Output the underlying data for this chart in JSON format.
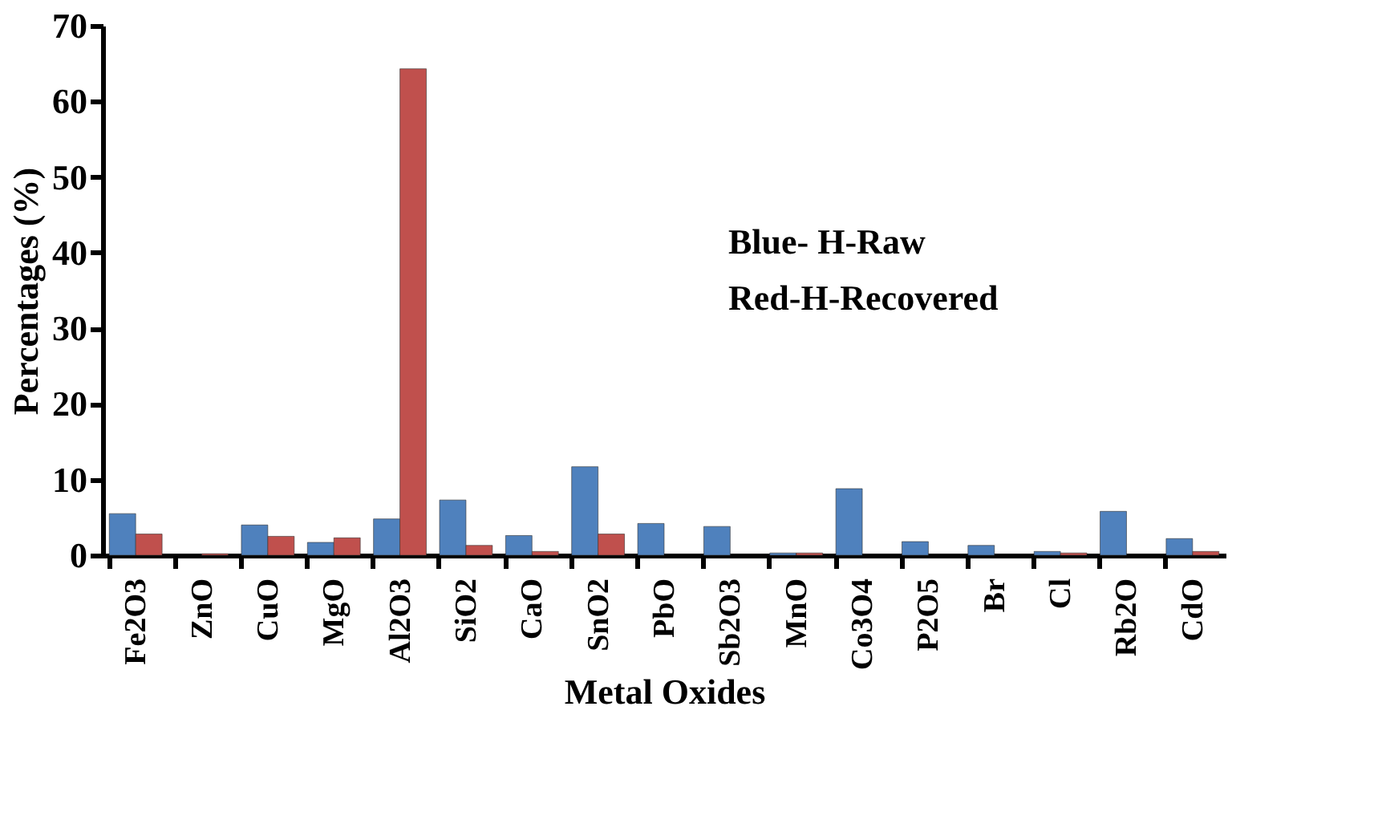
{
  "chart_data": {
    "type": "bar",
    "xlabel": "Metal Oxides",
    "ylabel": "Percentages (%)",
    "categories": [
      "Fe2O3",
      "ZnO",
      "CuO",
      "MgO",
      "Al2O3",
      "SiO2",
      "CaO",
      "SnO2",
      "PbO",
      "Sb2O3",
      "MnO",
      "Co3O4",
      "P2O5",
      "Br",
      "Cl",
      "Rb2O",
      "CdO"
    ],
    "series": [
      {
        "color": "#4f81bd",
        "values": [
          5.5,
          null,
          4,
          1.7,
          4.8,
          7.3,
          2.6,
          11.7,
          4.2,
          3.8,
          0.3,
          8.8,
          1.8,
          1.3,
          0.5,
          5.8,
          2.2
        ]
      },
      {
        "color": "#c0504d",
        "values": [
          2.8,
          0.2,
          2.5,
          2.3,
          64.3,
          1.3,
          0.5,
          2.8,
          null,
          null,
          0.3,
          null,
          null,
          null,
          0.3,
          null,
          0.5
        ]
      }
    ],
    "ylim": [
      0,
      70
    ],
    "yticks": [
      0,
      10,
      20,
      30,
      40,
      50,
      60,
      70
    ],
    "grid": false,
    "legend": false,
    "annotations": [
      "Blue- H-Raw",
      "Red-H-Recovered"
    ]
  }
}
